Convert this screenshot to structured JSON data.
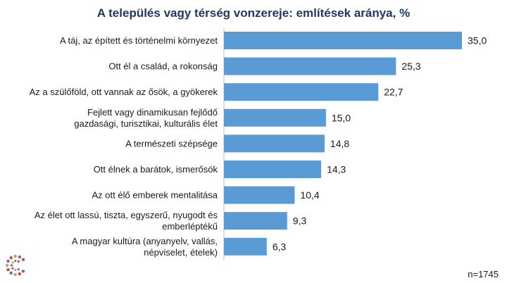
{
  "chart_data": {
    "type": "bar",
    "orientation": "horizontal",
    "title": "A település  vagy térség vonzereje: említések aránya, %",
    "categories": [
      [
        "A táj, az épített és történelmi környezet"
      ],
      [
        "Ott él a család, a rokonság"
      ],
      [
        "Az a szülőföld, ott vannak az ősök, a gyökerek"
      ],
      [
        "Fejlett vagy dinamikusan fejlődő",
        "gazdasági, turisztikai, kulturális élet"
      ],
      [
        "A természeti szépsége"
      ],
      [
        "Ott élnek a barátok, ismerősök"
      ],
      [
        "Az ott élő emberek mentalitása"
      ],
      [
        "Az élet ott lassú, tiszta, egyszerű, nyugodt és",
        "emberléptékű"
      ],
      [
        "A magyar kultúra (anyanyelv, vallás,",
        "népviselet, ételek)"
      ]
    ],
    "values": [
      35.0,
      25.3,
      22.7,
      15.0,
      14.8,
      14.3,
      10.4,
      9.3,
      6.3
    ],
    "value_labels": [
      "35,0",
      "25,3",
      "22,7",
      "15,0",
      "14,8",
      "14,3",
      "10,4",
      "9,3",
      "6,3"
    ],
    "xlim": [
      0,
      35.0
    ],
    "bar_color": "#5b9bd5",
    "grid": false,
    "legend": "none",
    "note": "n=1745"
  },
  "logo": {
    "icon": "dotted-c-logo-icon",
    "colors": [
      "#8064a2",
      "#c0504d",
      "#9bbb59"
    ]
  }
}
